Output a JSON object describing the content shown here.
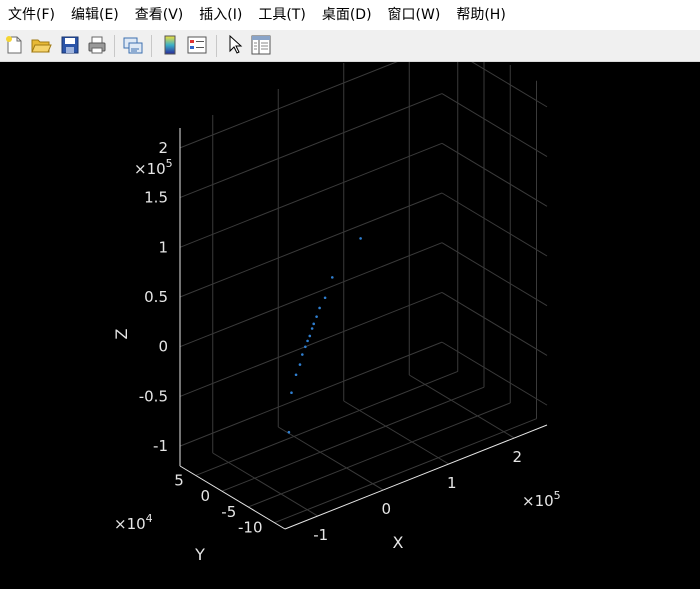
{
  "menu": [
    "文件(F)",
    "编辑(E)",
    "查看(V)",
    "插入(I)",
    "工具(T)",
    "桌面(D)",
    "窗口(W)",
    "帮助(H)"
  ],
  "toolbar_icons": [
    "new-figure-icon",
    "open-file-icon",
    "save-icon",
    "print-icon",
    "link-plot-icon",
    "insert-colorbar-icon",
    "insert-legend-icon",
    "edit-plot-arrow-icon",
    "property-inspector-icon"
  ],
  "colors": {
    "background": "#000000",
    "axes": "#e6e6e6",
    "grid": "#3a3a3a",
    "points": "#2f7fd1"
  },
  "chart_data": {
    "type": "scatter",
    "dimensions": 3,
    "xlabel": "X",
    "ylabel": "Y",
    "zlabel": "Z",
    "x_multiplier": "×10",
    "x_multiplier_exp": "5",
    "y_multiplier": "×10",
    "y_multiplier_exp": "4",
    "z_multiplier": "×10",
    "z_multiplier_exp": "5",
    "x_ticks": [
      "-1",
      "0",
      "1",
      "2"
    ],
    "y_ticks": [
      "5",
      "0",
      "-5",
      "-10"
    ],
    "z_ticks": [
      "2",
      "1.5",
      "1",
      "0.5",
      "0",
      "-0.5",
      "-1"
    ],
    "xlim": [
      -150000,
      250000
    ],
    "ylim": [
      -120000,
      80000
    ],
    "zlim": [
      -120000,
      220000
    ],
    "grid": true,
    "points": [
      {
        "x": 250000,
        "y": 60000,
        "z": 190000
      },
      {
        "x": 60000,
        "y": -2000,
        "z": 80000
      },
      {
        "x": 20000,
        "y": 2000,
        "z": 50000
      },
      {
        "x": 5000,
        "y": -3000,
        "z": 35000
      },
      {
        "x": -5000,
        "y": -5000,
        "z": 28000
      },
      {
        "x": -12000,
        "y": -8000,
        "z": 22000
      },
      {
        "x": -18000,
        "y": -10000,
        "z": 17000
      },
      {
        "x": -22000,
        "y": -12000,
        "z": 14000
      },
      {
        "x": -28000,
        "y": -15000,
        "z": 9000
      },
      {
        "x": -33000,
        "y": -17000,
        "z": 6000
      },
      {
        "x": -38000,
        "y": -19000,
        "z": 2000
      },
      {
        "x": -45000,
        "y": -22000,
        "z": -3000
      },
      {
        "x": -55000,
        "y": -30000,
        "z": -8000
      },
      {
        "x": -65000,
        "y": -35000,
        "z": -14000
      },
      {
        "x": -80000,
        "y": -45000,
        "z": -25000
      },
      {
        "x": -120000,
        "y": -90000,
        "z": -40000
      }
    ]
  }
}
